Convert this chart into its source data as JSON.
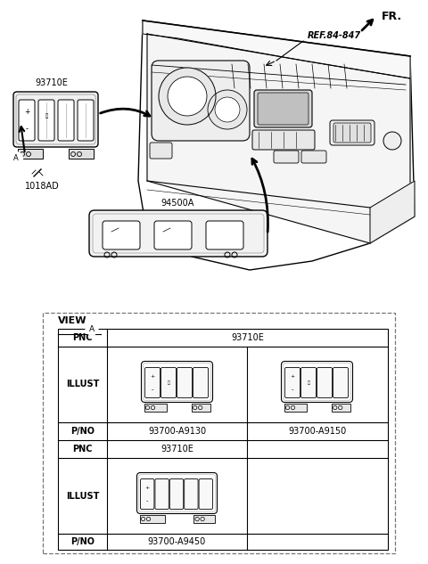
{
  "bg_color": "#ffffff",
  "fr_label": "FR.",
  "ref_label": "REF.84-847",
  "label_93710E": "93710E",
  "label_1018AD": "1018AD",
  "label_94500A": "94500A",
  "view_label": "VIEW",
  "circle_a_label": "A",
  "table_pnc1": "93710E",
  "table_pno1": "93700-A9130",
  "table_pno2": "93700-A9150",
  "table_pnc2": "93710E",
  "table_pno3": "93700-A9450",
  "table_illust": "ILLUST",
  "table_pnc": "PNC",
  "table_pno": "P/NO"
}
